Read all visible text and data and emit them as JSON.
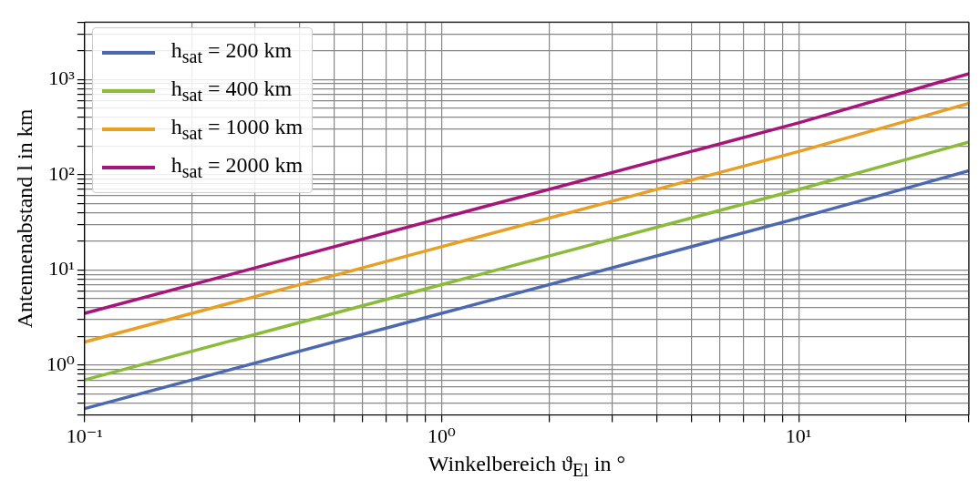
{
  "chart_data": {
    "type": "line",
    "xlabel": "Winkelbereich ϑ$_{El}$ in °",
    "ylabel": "Antennenabstand l in km",
    "x": [
      0.1,
      1,
      10,
      30
    ],
    "series": [
      {
        "name": "h$_{sat}$ = 200 km",
        "color": "#4c68b0",
        "values": [
          0.35,
          3.5,
          35,
          110
        ]
      },
      {
        "name": "h$_{sat}$ = 400 km",
        "color": "#8cbb3c",
        "values": [
          0.7,
          7,
          70,
          220
        ]
      },
      {
        "name": "h$_{sat}$ = 1000 km",
        "color": "#e89f24",
        "values": [
          1.75,
          17.5,
          175,
          560
        ]
      },
      {
        "name": "h$_{sat}$ = 2000 km",
        "color": "#a5157a",
        "values": [
          3.5,
          35,
          350,
          1150
        ]
      }
    ],
    "log": "xy",
    "xlim": [
      0.1,
      30
    ],
    "ylim": [
      0.3,
      4000
    ],
    "xticks": [
      {
        "value": 0.1,
        "label": "10⁻¹"
      },
      {
        "value": 0.2,
        "label": null
      },
      {
        "value": 0.3,
        "label": null
      },
      {
        "value": 0.4,
        "label": null
      },
      {
        "value": 0.5,
        "label": null
      },
      {
        "value": 0.6,
        "label": null
      },
      {
        "value": 0.7,
        "label": null
      },
      {
        "value": 0.8,
        "label": null
      },
      {
        "value": 0.9,
        "label": null
      },
      {
        "value": 1,
        "label": "10⁰"
      },
      {
        "value": 2,
        "label": null
      },
      {
        "value": 3,
        "label": null
      },
      {
        "value": 4,
        "label": null
      },
      {
        "value": 5,
        "label": null
      },
      {
        "value": 6,
        "label": null
      },
      {
        "value": 7,
        "label": null
      },
      {
        "value": 8,
        "label": null
      },
      {
        "value": 9,
        "label": null
      },
      {
        "value": 10,
        "label": "10¹"
      },
      {
        "value": 20,
        "label": null
      },
      {
        "value": 30,
        "label": null
      }
    ],
    "yticks": [
      {
        "value": 0.3,
        "label": null
      },
      {
        "value": 0.4,
        "label": null
      },
      {
        "value": 0.5,
        "label": null
      },
      {
        "value": 0.6,
        "label": null
      },
      {
        "value": 0.7,
        "label": null
      },
      {
        "value": 0.8,
        "label": null
      },
      {
        "value": 0.9,
        "label": null
      },
      {
        "value": 1,
        "label": "10⁰"
      },
      {
        "value": 2,
        "label": null
      },
      {
        "value": 3,
        "label": null
      },
      {
        "value": 4,
        "label": null
      },
      {
        "value": 5,
        "label": null
      },
      {
        "value": 6,
        "label": null
      },
      {
        "value": 7,
        "label": null
      },
      {
        "value": 8,
        "label": null
      },
      {
        "value": 9,
        "label": null
      },
      {
        "value": 10,
        "label": "10¹"
      },
      {
        "value": 20,
        "label": null
      },
      {
        "value": 30,
        "label": null
      },
      {
        "value": 40,
        "label": null
      },
      {
        "value": 50,
        "label": null
      },
      {
        "value": 60,
        "label": null
      },
      {
        "value": 70,
        "label": null
      },
      {
        "value": 80,
        "label": null
      },
      {
        "value": 90,
        "label": null
      },
      {
        "value": 100,
        "label": "10²"
      },
      {
        "value": 200,
        "label": null
      },
      {
        "value": 300,
        "label": null
      },
      {
        "value": 400,
        "label": null
      },
      {
        "value": 500,
        "label": null
      },
      {
        "value": 600,
        "label": null
      },
      {
        "value": 700,
        "label": null
      },
      {
        "value": 800,
        "label": null
      },
      {
        "value": 900,
        "label": null
      },
      {
        "value": 1000,
        "label": "10³"
      },
      {
        "value": 2000,
        "label": null
      },
      {
        "value": 3000,
        "label": null
      },
      {
        "value": 4000,
        "label": null
      }
    ],
    "grid": true,
    "legend": "top left",
    "line_style": "solid",
    "marker": "none"
  }
}
